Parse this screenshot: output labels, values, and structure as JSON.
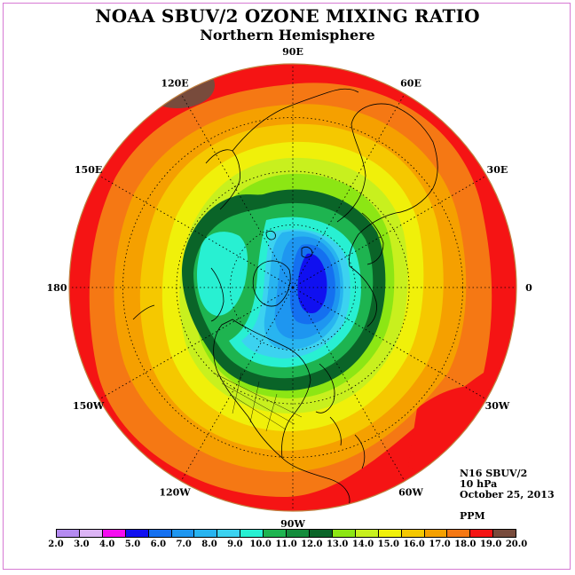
{
  "title": "NOAA SBUV/2 OZONE MIXING RATIO",
  "subtitle": "Northern Hemisphere",
  "info": {
    "satellite": "N16 SBUV/2",
    "level": "10 hPa",
    "date": "October 25, 2013",
    "units": "PPM"
  },
  "longitude_labels": [
    {
      "label": "90E",
      "lon": 90
    },
    {
      "label": "60E",
      "lon": 60
    },
    {
      "label": "30E",
      "lon": 30
    },
    {
      "label": "0",
      "lon": 0
    },
    {
      "label": "30W",
      "lon": -30
    },
    {
      "label": "60W",
      "lon": -60
    },
    {
      "label": "90W",
      "lon": -90
    },
    {
      "label": "120W",
      "lon": -120
    },
    {
      "label": "150W",
      "lon": -150
    },
    {
      "label": "180",
      "lon": 180
    },
    {
      "label": "150E",
      "lon": 150
    },
    {
      "label": "120E",
      "lon": 120
    }
  ],
  "colorbar": {
    "ticks": [
      "2.0",
      "3.0",
      "4.0",
      "5.0",
      "6.0",
      "7.0",
      "8.0",
      "9.0",
      "10.0",
      "11.0",
      "12.0",
      "13.0",
      "14.0",
      "15.0",
      "16.0",
      "17.0",
      "18.0",
      "19.0",
      "20.0"
    ],
    "colors": [
      "#b48af0",
      "#dcb4f5",
      "#f50cf0",
      "#1010f0",
      "#1470f0",
      "#1e96f0",
      "#28b4f0",
      "#3cd2f0",
      "#28f0d2",
      "#1eb450",
      "#148c3c",
      "#0a6428",
      "#8ce614",
      "#c8f01e",
      "#f0f00a",
      "#f5c800",
      "#f5a000",
      "#f57814",
      "#f51414",
      "#784b3c"
    ]
  },
  "map_fields": {
    "outer_band_max": 20.0,
    "minimum_value": 5.0,
    "minimum_location": "Scandinavia / Barents Sea",
    "secondary_low": 10.0,
    "secondary_low_location": "North Pacific / Bering Sea"
  }
}
